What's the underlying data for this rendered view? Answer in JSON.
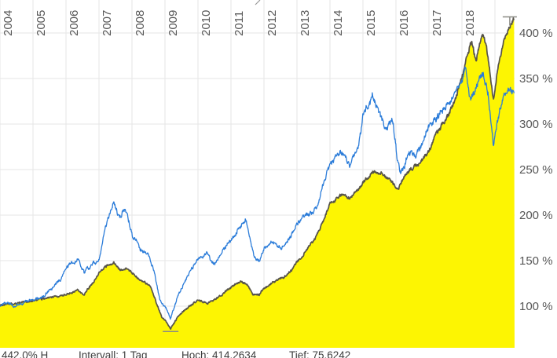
{
  "chart_data": {
    "type": "line",
    "title": "",
    "legend": "none",
    "grid": true,
    "x_axis": {
      "side": "top",
      "tick_labels": [
        "2004",
        "2005",
        "2006",
        "2007",
        "2008",
        "2009",
        "2010",
        "2011",
        "2012",
        "2013",
        "2014",
        "2015",
        "2016",
        "2017",
        "2018"
      ],
      "tick_years": [
        2004,
        2005,
        2006,
        2007,
        2008,
        2009,
        2010,
        2011,
        2012,
        2013,
        2014,
        2015,
        2016,
        2017,
        2018
      ],
      "range": [
        2004,
        2019.6
      ]
    },
    "y_axis": {
      "side": "right",
      "unit": "%",
      "tick_labels": [
        "100 %",
        "150 %",
        "200 %",
        "250 %",
        "300 %",
        "350 %",
        "400 %"
      ],
      "tick_values": [
        100,
        150,
        200,
        250,
        300,
        350,
        400
      ],
      "visible_range": [
        70,
        420
      ]
    },
    "series": [
      {
        "name": "blue-line",
        "type": "line",
        "color": "#2b7cd9",
        "points": [
          [
            2004,
            100
          ],
          [
            2004.2,
            104
          ],
          [
            2004.45,
            101
          ],
          [
            2004.7,
            105
          ],
          [
            2005,
            108
          ],
          [
            2005.3,
            112
          ],
          [
            2005.6,
            120
          ],
          [
            2005.85,
            130
          ],
          [
            2006,
            143
          ],
          [
            2006.35,
            152
          ],
          [
            2006.55,
            137
          ],
          [
            2006.8,
            147
          ],
          [
            2007,
            153
          ],
          [
            2007.2,
            188
          ],
          [
            2007.45,
            215
          ],
          [
            2007.6,
            198
          ],
          [
            2007.8,
            208
          ],
          [
            2008,
            178
          ],
          [
            2008.25,
            163
          ],
          [
            2008.5,
            157
          ],
          [
            2008.7,
            135
          ],
          [
            2008.85,
            108
          ],
          [
            2009,
            100
          ],
          [
            2009.17,
            87
          ],
          [
            2009.4,
            112
          ],
          [
            2009.6,
            128
          ],
          [
            2009.8,
            140
          ],
          [
            2010,
            152
          ],
          [
            2010.25,
            158
          ],
          [
            2010.5,
            144
          ],
          [
            2010.75,
            160
          ],
          [
            2011,
            172
          ],
          [
            2011.2,
            183
          ],
          [
            2011.45,
            195
          ],
          [
            2011.6,
            170
          ],
          [
            2011.7,
            152
          ],
          [
            2011.85,
            148
          ],
          [
            2012,
            162
          ],
          [
            2012.25,
            172
          ],
          [
            2012.5,
            163
          ],
          [
            2012.75,
            172
          ],
          [
            2013,
            188
          ],
          [
            2013.3,
            200
          ],
          [
            2013.6,
            208
          ],
          [
            2013.8,
            232
          ],
          [
            2014,
            255
          ],
          [
            2014.3,
            268
          ],
          [
            2014.6,
            255
          ],
          [
            2014.85,
            275
          ],
          [
            2015,
            310
          ],
          [
            2015.3,
            333
          ],
          [
            2015.5,
            312
          ],
          [
            2015.7,
            295
          ],
          [
            2015.9,
            308
          ],
          [
            2016.05,
            262
          ],
          [
            2016.15,
            245
          ],
          [
            2016.4,
            268
          ],
          [
            2016.6,
            262
          ],
          [
            2016.85,
            282
          ],
          [
            2017,
            295
          ],
          [
            2017.25,
            308
          ],
          [
            2017.5,
            318
          ],
          [
            2017.75,
            330
          ],
          [
            2018,
            348
          ],
          [
            2018.1,
            358
          ],
          [
            2018.25,
            328
          ],
          [
            2018.45,
            342
          ],
          [
            2018.65,
            355
          ],
          [
            2018.8,
            332
          ],
          [
            2018.95,
            278
          ],
          [
            2019.1,
            308
          ],
          [
            2019.25,
            328
          ],
          [
            2019.4,
            340
          ],
          [
            2019.58,
            334
          ]
        ]
      },
      {
        "name": "yellow-area",
        "type": "area",
        "fill_color": "#fdf502",
        "border_color": "#56534a",
        "points": [
          [
            2004,
            100
          ],
          [
            2004.3,
            102
          ],
          [
            2004.6,
            104
          ],
          [
            2005,
            106
          ],
          [
            2005.4,
            109
          ],
          [
            2005.8,
            111
          ],
          [
            2006,
            112
          ],
          [
            2006.35,
            118
          ],
          [
            2006.55,
            113
          ],
          [
            2006.8,
            124
          ],
          [
            2007,
            136
          ],
          [
            2007.2,
            143
          ],
          [
            2007.45,
            148
          ],
          [
            2007.65,
            140
          ],
          [
            2007.85,
            142
          ],
          [
            2008,
            136
          ],
          [
            2008.3,
            128
          ],
          [
            2008.55,
            122
          ],
          [
            2008.75,
            102
          ],
          [
            2008.9,
            88
          ],
          [
            2009.05,
            82
          ],
          [
            2009.17,
            75.62
          ],
          [
            2009.35,
            86
          ],
          [
            2009.6,
            96
          ],
          [
            2009.8,
            101
          ],
          [
            2010,
            107
          ],
          [
            2010.3,
            103
          ],
          [
            2010.6,
            109
          ],
          [
            2010.85,
            116
          ],
          [
            2011,
            121
          ],
          [
            2011.3,
            127
          ],
          [
            2011.5,
            124
          ],
          [
            2011.65,
            113
          ],
          [
            2011.85,
            112
          ],
          [
            2012,
            120
          ],
          [
            2012.3,
            126
          ],
          [
            2012.6,
            131
          ],
          [
            2012.85,
            140
          ],
          [
            2013,
            148
          ],
          [
            2013.3,
            162
          ],
          [
            2013.6,
            178
          ],
          [
            2013.85,
            198
          ],
          [
            2014,
            213
          ],
          [
            2014.3,
            222
          ],
          [
            2014.6,
            218
          ],
          [
            2014.85,
            228
          ],
          [
            2015,
            236
          ],
          [
            2015.3,
            248
          ],
          [
            2015.6,
            244
          ],
          [
            2015.85,
            238
          ],
          [
            2016.05,
            230
          ],
          [
            2016.2,
            238
          ],
          [
            2016.45,
            250
          ],
          [
            2016.7,
            255
          ],
          [
            2016.85,
            262
          ],
          [
            2017,
            270
          ],
          [
            2017.2,
            288
          ],
          [
            2017.4,
            298
          ],
          [
            2017.6,
            308
          ],
          [
            2017.8,
            328
          ],
          [
            2018,
            352
          ],
          [
            2018.15,
            372
          ],
          [
            2018.3,
            392
          ],
          [
            2018.42,
            370
          ],
          [
            2018.55,
            390
          ],
          [
            2018.65,
            399
          ],
          [
            2018.78,
            378
          ],
          [
            2018.95,
            326
          ],
          [
            2019.1,
            362
          ],
          [
            2019.25,
            386
          ],
          [
            2019.4,
            402
          ],
          [
            2019.58,
            414.26
          ]
        ]
      }
    ],
    "markers": {
      "high": {
        "x": 2019.45,
        "value": 414.2634
      },
      "low": {
        "x": 2009.17,
        "value": 75.6242
      }
    }
  },
  "footer": {
    "performance": "442.0% H",
    "interval": "Intervall: 1 Tag",
    "high": "Hoch: 414.2634",
    "low": "Tief: 75.6242"
  },
  "colors": {
    "blue_line": "#2b7cd9",
    "area_fill": "#fdf502",
    "area_border": "#56534a",
    "gridline": "#e6e6e6",
    "axis_text": "#575757",
    "marker": "#8b8b85",
    "footer_text": "#3e3e3e",
    "background": "#ffffff"
  }
}
